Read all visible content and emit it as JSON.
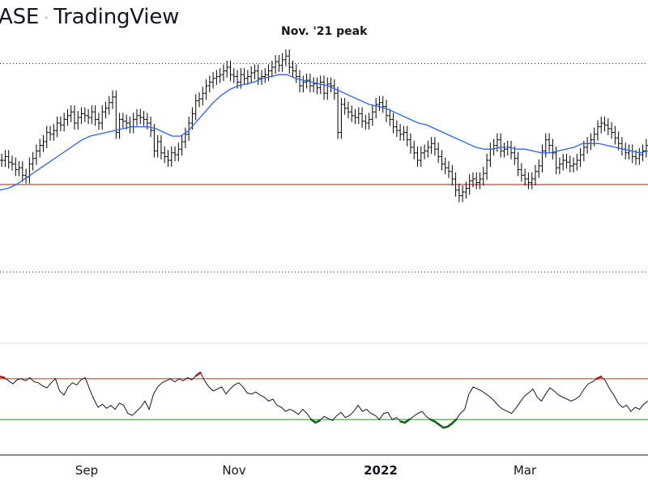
{
  "header": {
    "exchange": "ASE",
    "separator": "·",
    "brand": "TradingView"
  },
  "chart_data": {
    "type": "line",
    "annotation": "Nov. '21 peak",
    "x_tick_labels": [
      "Sep",
      "Nov",
      "2022",
      "Mar"
    ],
    "emphasized_tick": "2022",
    "colors": {
      "bars": "#000000",
      "moving_average": "#2962ff",
      "support_line": "#e53935",
      "rsi_line": "#131722",
      "rsi_upper": "#e53935",
      "rsi_lower": "#43a047",
      "overbought": "#b71c1c",
      "oversold": "#1b5e20"
    },
    "price_panel": {
      "ylim": [
        0,
        1
      ],
      "levels": {
        "peak": 0.92,
        "support": 0.27,
        "bottom": 0.0
      },
      "series": [
        {
          "style": "ohlc-bars",
          "values": [
            0.4,
            0.42,
            0.39,
            0.38,
            0.35,
            0.36,
            0.32,
            0.31,
            0.38,
            0.41,
            0.45,
            0.48,
            0.5,
            0.55,
            0.54,
            0.56,
            0.6,
            0.59,
            0.62,
            0.64,
            0.66,
            0.6,
            0.63,
            0.65,
            0.64,
            0.63,
            0.66,
            0.62,
            0.6,
            0.66,
            0.68,
            0.71,
            0.74,
            0.55,
            0.62,
            0.61,
            0.6,
            0.58,
            0.62,
            0.64,
            0.63,
            0.62,
            0.6,
            0.56,
            0.45,
            0.5,
            0.44,
            0.42,
            0.4,
            0.44,
            0.43,
            0.46,
            0.5,
            0.54,
            0.6,
            0.65,
            0.72,
            0.73,
            0.76,
            0.8,
            0.82,
            0.84,
            0.85,
            0.86,
            0.88,
            0.9,
            0.86,
            0.85,
            0.82,
            0.86,
            0.84,
            0.85,
            0.87,
            0.88,
            0.84,
            0.85,
            0.86,
            0.88,
            0.9,
            0.93,
            0.91,
            0.94,
            0.96,
            0.9,
            0.88,
            0.85,
            0.8,
            0.82,
            0.83,
            0.8,
            0.81,
            0.79,
            0.82,
            0.76,
            0.81,
            0.8,
            0.76,
            0.55,
            0.7,
            0.68,
            0.66,
            0.64,
            0.63,
            0.65,
            0.61,
            0.6,
            0.62,
            0.66,
            0.7,
            0.71,
            0.69,
            0.64,
            0.62,
            0.58,
            0.56,
            0.54,
            0.55,
            0.51,
            0.47,
            0.44,
            0.4,
            0.44,
            0.45,
            0.47,
            0.49,
            0.46,
            0.42,
            0.38,
            0.36,
            0.34,
            0.3,
            0.24,
            0.21,
            0.23,
            0.25,
            0.29,
            0.3,
            0.28,
            0.3,
            0.33,
            0.4,
            0.46,
            0.48,
            0.51,
            0.45,
            0.46,
            0.47,
            0.44,
            0.41,
            0.35,
            0.32,
            0.3,
            0.28,
            0.3,
            0.34,
            0.37,
            0.45,
            0.51,
            0.48,
            0.44,
            0.36,
            0.38,
            0.4,
            0.39,
            0.37,
            0.38,
            0.4,
            0.43,
            0.47,
            0.49,
            0.51,
            0.54,
            0.58,
            0.6,
            0.59,
            0.57,
            0.55,
            0.52,
            0.49,
            0.46,
            0.44,
            0.45,
            0.42,
            0.41,
            0.43,
            0.45,
            0.48
          ]
        },
        {
          "style": "line",
          "name": "",
          "values": [
            0.24,
            0.25,
            0.27,
            0.3,
            0.33,
            0.36,
            0.39,
            0.42,
            0.45,
            0.48,
            0.51,
            0.53,
            0.54,
            0.55,
            0.56,
            0.57,
            0.58,
            0.58,
            0.58,
            0.57,
            0.55,
            0.53,
            0.53,
            0.56,
            0.61,
            0.66,
            0.71,
            0.75,
            0.78,
            0.8,
            0.81,
            0.82,
            0.84,
            0.85,
            0.86,
            0.86,
            0.84,
            0.83,
            0.82,
            0.81,
            0.8,
            0.78,
            0.76,
            0.74,
            0.72,
            0.7,
            0.69,
            0.68,
            0.66,
            0.64,
            0.62,
            0.6,
            0.59,
            0.57,
            0.55,
            0.53,
            0.51,
            0.49,
            0.47,
            0.46,
            0.46,
            0.47,
            0.47,
            0.46,
            0.46,
            0.45,
            0.44,
            0.44,
            0.45,
            0.46,
            0.47,
            0.49,
            0.49,
            0.49,
            0.48,
            0.47,
            0.46,
            0.45,
            0.44,
            0.45
          ]
        }
      ]
    },
    "rsi_panel": {
      "ylim": [
        0,
        100
      ],
      "upper_level": 70,
      "lower_level": 30,
      "values": [
        72,
        71,
        68,
        65,
        69,
        70,
        68,
        71,
        67,
        66,
        63,
        61,
        66,
        70,
        58,
        54,
        62,
        66,
        64,
        69,
        71,
        60,
        50,
        42,
        45,
        41,
        44,
        40,
        46,
        44,
        36,
        34,
        38,
        42,
        48,
        40,
        55,
        62,
        66,
        68,
        70,
        67,
        70,
        68,
        71,
        69,
        73,
        76,
        68,
        62,
        58,
        60,
        62,
        55,
        60,
        64,
        66,
        62,
        56,
        55,
        57,
        54,
        52,
        48,
        50,
        44,
        42,
        38,
        40,
        38,
        35,
        40,
        36,
        30,
        27,
        29,
        33,
        31,
        29,
        34,
        37,
        32,
        34,
        38,
        44,
        38,
        40,
        36,
        34,
        30,
        36,
        37,
        30,
        32,
        28,
        27,
        30,
        33,
        36,
        38,
        33,
        30,
        28,
        25,
        22,
        23,
        26,
        30,
        36,
        40,
        55,
        62,
        60,
        58,
        55,
        52,
        48,
        43,
        40,
        38,
        36,
        41,
        47,
        53,
        56,
        60,
        52,
        48,
        55,
        61,
        58,
        54,
        52,
        50,
        48,
        50,
        53,
        60,
        65,
        67,
        70,
        72,
        68,
        60,
        54,
        46,
        42,
        44,
        38,
        42,
        40,
        45,
        48
      ]
    }
  }
}
